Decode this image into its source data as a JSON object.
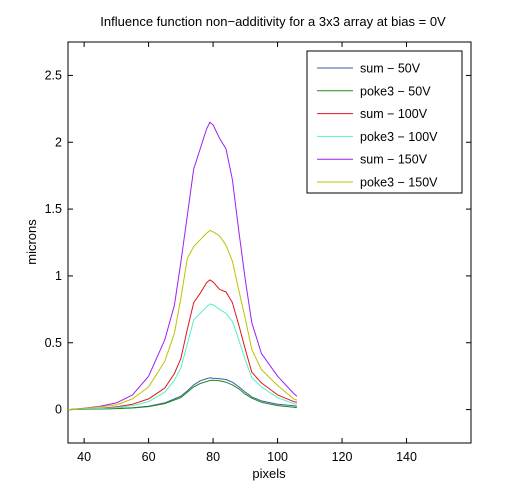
{
  "chart_data": {
    "type": "line",
    "title": "Influence function non−additivity for a 3x3 array at bias = 0V",
    "xlabel": "pixels",
    "ylabel": "microns",
    "xlim": [
      35,
      160
    ],
    "ylim": [
      -0.25,
      2.75
    ],
    "xticks": [
      "40",
      "60",
      "80",
      "100",
      "120",
      "140"
    ],
    "yticks": [
      "0",
      "0.5",
      "1",
      "1.5",
      "2",
      "2.5"
    ],
    "grid": false,
    "legend_position": "top-right",
    "series": [
      {
        "name": "sum − 50V",
        "color": "#3a5fa0",
        "x": [
          35,
          40,
          45,
          50,
          55,
          60,
          65,
          70,
          72,
          74,
          76,
          78,
          79,
          80,
          82,
          84,
          86,
          88,
          90,
          92,
          95,
          100,
          105,
          106
        ],
        "y": [
          0.0,
          0.003,
          0.005,
          0.008,
          0.013,
          0.025,
          0.05,
          0.1,
          0.14,
          0.185,
          0.215,
          0.232,
          0.238,
          0.235,
          0.23,
          0.225,
          0.205,
          0.17,
          0.13,
          0.095,
          0.065,
          0.04,
          0.028,
          0.025
        ]
      },
      {
        "name": "poke3 − 50V",
        "color": "#1e8a1e",
        "x": [
          35,
          40,
          45,
          50,
          55,
          60,
          65,
          70,
          72,
          74,
          76,
          78,
          79,
          80,
          82,
          84,
          86,
          88,
          90,
          92,
          95,
          100,
          105,
          106
        ],
        "y": [
          0.0,
          0.002,
          0.004,
          0.007,
          0.012,
          0.022,
          0.045,
          0.09,
          0.13,
          0.17,
          0.195,
          0.21,
          0.218,
          0.22,
          0.215,
          0.205,
          0.185,
          0.155,
          0.115,
          0.085,
          0.055,
          0.03,
          0.018,
          0.015
        ]
      },
      {
        "name": "sum − 100V",
        "color": "#e0141e",
        "x": [
          35,
          40,
          45,
          50,
          55,
          60,
          65,
          68,
          70,
          72,
          74,
          76,
          78,
          79,
          80,
          82,
          84,
          86,
          88,
          90,
          92,
          95,
          100,
          105,
          106
        ],
        "y": [
          0.0,
          0.005,
          0.01,
          0.02,
          0.04,
          0.08,
          0.16,
          0.27,
          0.38,
          0.6,
          0.8,
          0.87,
          0.95,
          0.97,
          0.955,
          0.9,
          0.88,
          0.8,
          0.63,
          0.45,
          0.28,
          0.2,
          0.11,
          0.06,
          0.055
        ]
      },
      {
        "name": "poke3 − 100V",
        "color": "#55f0c8",
        "x": [
          35,
          40,
          45,
          50,
          55,
          60,
          65,
          68,
          70,
          72,
          74,
          76,
          78,
          79,
          80,
          82,
          84,
          86,
          88,
          90,
          92,
          95,
          100,
          105,
          106
        ],
        "y": [
          0.0,
          0.004,
          0.008,
          0.015,
          0.03,
          0.06,
          0.13,
          0.22,
          0.31,
          0.49,
          0.67,
          0.72,
          0.77,
          0.79,
          0.785,
          0.75,
          0.72,
          0.66,
          0.52,
          0.37,
          0.24,
          0.17,
          0.09,
          0.045,
          0.04
        ]
      },
      {
        "name": "sum − 150V",
        "color": "#a020f0",
        "x": [
          35,
          40,
          45,
          50,
          55,
          60,
          65,
          68,
          70,
          72,
          74,
          76,
          78,
          79,
          80,
          82,
          84,
          86,
          88,
          90,
          92,
          95,
          100,
          105,
          106
        ],
        "y": [
          0.0,
          0.01,
          0.025,
          0.05,
          0.11,
          0.25,
          0.52,
          0.78,
          1.1,
          1.45,
          1.8,
          1.95,
          2.1,
          2.15,
          2.13,
          2.03,
          1.95,
          1.72,
          1.33,
          0.97,
          0.65,
          0.42,
          0.25,
          0.12,
          0.1
        ]
      },
      {
        "name": "poke3 − 150V",
        "color": "#c0c000",
        "x": [
          35,
          40,
          45,
          50,
          55,
          60,
          65,
          68,
          70,
          72,
          74,
          76,
          78,
          79,
          80,
          82,
          84,
          86,
          88,
          90,
          92,
          95,
          100,
          105,
          106
        ],
        "y": [
          0.0,
          0.008,
          0.02,
          0.035,
          0.08,
          0.17,
          0.36,
          0.57,
          0.83,
          1.13,
          1.22,
          1.27,
          1.32,
          1.34,
          1.33,
          1.3,
          1.23,
          1.11,
          0.89,
          0.68,
          0.45,
          0.3,
          0.18,
          0.08,
          0.07
        ]
      }
    ]
  }
}
